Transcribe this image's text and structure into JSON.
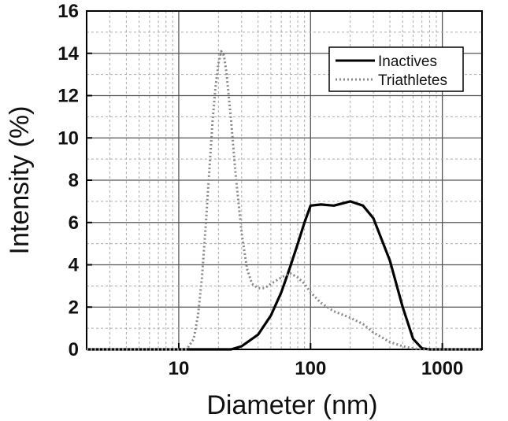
{
  "chart_data": {
    "type": "line",
    "title": "",
    "xlabel": "Diameter (nm)",
    "ylabel": "Intensity (%)",
    "x_scale": "log",
    "xlim": [
      2,
      2000
    ],
    "ylim": [
      0,
      16
    ],
    "x_ticks": [
      10,
      100,
      1000
    ],
    "x_tick_labels": [
      "10",
      "100",
      "1000"
    ],
    "y_ticks": [
      0,
      2,
      4,
      6,
      8,
      10,
      12,
      14,
      16
    ],
    "y_tick_labels": [
      "0",
      "2",
      "4",
      "6",
      "8",
      "10",
      "12",
      "14",
      "16"
    ],
    "grid": true,
    "legend_position": "top-right",
    "series": [
      {
        "name": "Inactives",
        "style": "solid",
        "color": "#000000",
        "x": [
          2,
          25,
          30,
          40,
          50,
          60,
          70,
          80,
          90,
          100,
          120,
          150,
          200,
          250,
          300,
          400,
          500,
          600,
          700,
          800,
          2000
        ],
        "y": [
          0,
          0,
          0.15,
          0.7,
          1.6,
          2.7,
          3.9,
          5.0,
          6.0,
          6.8,
          6.85,
          6.8,
          7.0,
          6.8,
          6.2,
          4.2,
          2.0,
          0.5,
          0.05,
          0,
          0
        ]
      },
      {
        "name": "Triathletes",
        "style": "dotted",
        "color": "#888888",
        "x": [
          2,
          11.5,
          13,
          14,
          15,
          16,
          17,
          18,
          19,
          20,
          21,
          22,
          23,
          25,
          27,
          30,
          33,
          36,
          40,
          45,
          50,
          60,
          70,
          80,
          90,
          100,
          120,
          150,
          200,
          250,
          300,
          400,
          500,
          600,
          700,
          800,
          2000
        ],
        "y": [
          0,
          0,
          0.5,
          1.6,
          3.4,
          5.8,
          8.3,
          10.7,
          12.4,
          13.5,
          14.1,
          13.9,
          13.1,
          10.8,
          8.3,
          5.5,
          3.8,
          3.1,
          2.9,
          2.9,
          3.1,
          3.4,
          3.6,
          3.4,
          3.1,
          2.7,
          2.2,
          1.8,
          1.5,
          1.2,
          0.8,
          0.35,
          0.15,
          0.05,
          0,
          0,
          0
        ]
      }
    ]
  }
}
